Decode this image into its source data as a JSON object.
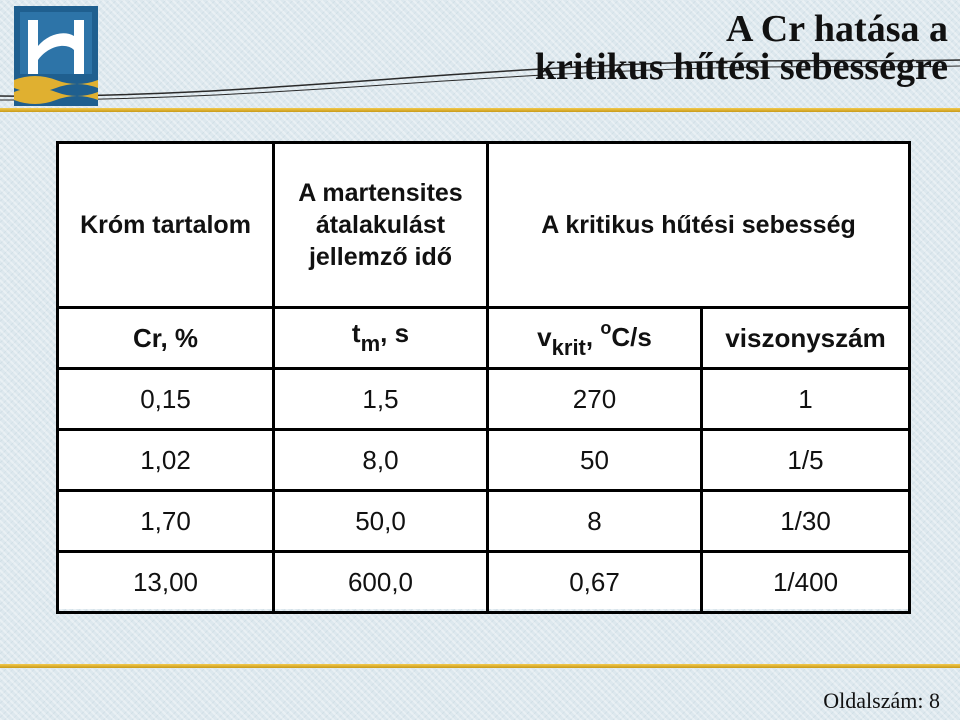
{
  "slide": {
    "title_line1": "A Cr hatása a",
    "title_line2": "kritikus hűtési sebességre",
    "page_label": "Oldalszám: 8"
  },
  "table": {
    "header": {
      "col1": "Króm tartalom",
      "col2": "A martensites átalakulást jellemző idő",
      "col3": "A kritikus hűtési sebesség"
    },
    "units": {
      "cr": "Cr, %",
      "tm_base": "t",
      "tm_sub": "m",
      "tm_rest": ", s",
      "v_base": "v",
      "v_sub": "krit",
      "v_sep": ", ",
      "v_sup": "o",
      "v_rest": "C/s",
      "ratio": "viszonyszám"
    },
    "rows": [
      {
        "cr": "0,15",
        "tm": "1,5",
        "v": "270",
        "ratio": "1"
      },
      {
        "cr": "1,02",
        "tm": "8,0",
        "v": "50",
        "ratio": "1/5"
      },
      {
        "cr": "1,70",
        "tm": "50,0",
        "v": "8",
        "ratio": "1/30"
      },
      {
        "cr": "13,00",
        "tm": "600,0",
        "v": "0,67",
        "ratio": "1/400"
      }
    ]
  },
  "colors": {
    "accent_gold": "#e0b030",
    "logo_blue": "#1f5f8f"
  },
  "icons": {
    "logo": "university-logo"
  }
}
